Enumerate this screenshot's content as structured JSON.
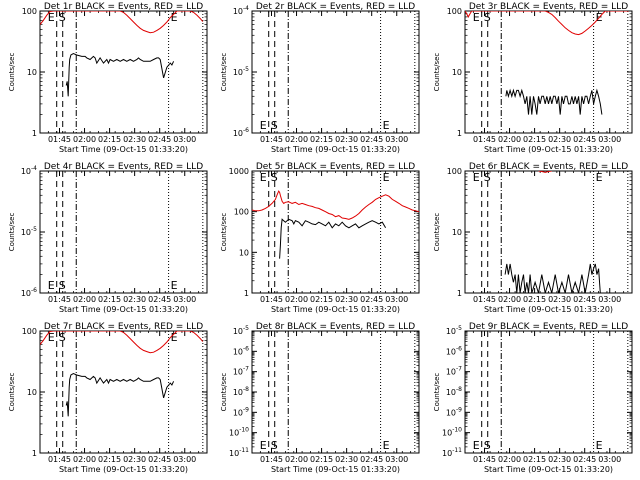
{
  "figure": {
    "start_time_label": "Start Time (09-Oct-15 01:33:20)",
    "colors": {
      "events": "#000000",
      "lld": "#e00000",
      "axes": "#000000"
    },
    "x_axis": {
      "unit": "minutes after 01:33:20",
      "range": [
        0,
        100
      ],
      "ticks": [
        {
          "value": 11.67,
          "label": "01:45"
        },
        {
          "value": 26.67,
          "label": "02:00"
        },
        {
          "value": 41.67,
          "label": "02:15"
        },
        {
          "value": 56.67,
          "label": "02:30"
        },
        {
          "value": 71.67,
          "label": "02:45"
        },
        {
          "value": 86.67,
          "label": "03:00"
        }
      ],
      "minor_step": 5
    },
    "markers": [
      {
        "kind": "dashed",
        "x": 10,
        "label": "E"
      },
      {
        "kind": "dashed",
        "x": 13.6,
        "label": "S"
      },
      {
        "kind": "dashdot",
        "x": 21.7,
        "label": ""
      },
      {
        "kind": "dotted",
        "x": 77,
        "label": "E"
      },
      {
        "kind": "dotted",
        "x": 97.5,
        "label": ""
      }
    ]
  },
  "chart_data": [
    {
      "type": "line",
      "title": "Det 1r BLACK = Events, RED = LLD",
      "ylabel": "Counts/sec",
      "yscale": "log",
      "ylim": [
        1,
        100
      ],
      "yticks": [
        1,
        10,
        100
      ],
      "series": [
        {
          "name": "Events",
          "color": "#000000",
          "x": [
            15.7,
            16.3,
            16.9,
            17.5,
            17.8,
            18.5,
            20,
            22,
            25,
            27,
            28,
            30,
            32,
            33,
            34,
            36,
            38,
            40,
            41,
            42,
            44,
            46,
            48,
            50,
            52,
            54,
            56,
            58,
            59,
            60,
            62,
            64,
            66,
            68,
            70,
            71,
            72,
            74,
            76,
            78,
            79,
            80
          ],
          "y": [
            6,
            7,
            4,
            12,
            16,
            19,
            20,
            19,
            18,
            18,
            17,
            16,
            18,
            17,
            14,
            17,
            14,
            16,
            14,
            16,
            15,
            16,
            15,
            16,
            15,
            16,
            15,
            16,
            17,
            16,
            15,
            15,
            15,
            16,
            17,
            17,
            16,
            8,
            12,
            14,
            13,
            15
          ]
        },
        {
          "name": "LLD",
          "color": "#e00000",
          "x": [
            0,
            2,
            4,
            6,
            8,
            10,
            10.5,
            11,
            12,
            14,
            16,
            18,
            20,
            22,
            24,
            26,
            28,
            30,
            32,
            34,
            36,
            38,
            40,
            42,
            44,
            46,
            48,
            50,
            52,
            54,
            56,
            58,
            60,
            62,
            64,
            66,
            68,
            70,
            72,
            74,
            76,
            78,
            80,
            82,
            84,
            86,
            88,
            90,
            92,
            94,
            96,
            97.5
          ],
          "y": [
            60,
            70,
            85,
            98,
            100,
            100,
            100,
            100,
            100,
            100,
            100,
            100,
            100,
            100,
            100,
            100,
            100,
            100,
            100,
            100,
            100,
            100,
            100,
            100,
            100,
            100,
            100,
            95,
            85,
            75,
            66,
            58,
            52,
            48,
            46,
            44,
            45,
            48,
            52,
            58,
            66,
            78,
            88,
            100,
            100,
            100,
            100,
            100,
            95,
            85,
            75,
            67
          ]
        }
      ]
    },
    {
      "type": "line",
      "title": "Det 2r BLACK = Events, RED = LLD",
      "ylabel": "Counts/sec",
      "yscale": "log",
      "ylim": [
        1e-06,
        0.0001
      ],
      "yticks": [
        1e-06,
        1e-05,
        0.0001
      ],
      "yticklabels": [
        "10^-6",
        "10^-5",
        "10^-4"
      ],
      "series": []
    },
    {
      "type": "line",
      "title": "Det 3r BLACK = Events, RED = LLD",
      "ylabel": "Counts/sec",
      "yscale": "log",
      "ylim": [
        1,
        100
      ],
      "yticks": [
        1,
        10,
        100
      ],
      "series": [
        {
          "name": "Events",
          "color": "#000000",
          "x": [
            24.5,
            25,
            26,
            27,
            28,
            29,
            30,
            31,
            32,
            33,
            34,
            35,
            36,
            37,
            38,
            39,
            40,
            41,
            42,
            43,
            44,
            45,
            46,
            47,
            48,
            49,
            50,
            51,
            52,
            53,
            54,
            55,
            56,
            57,
            58,
            59,
            60,
            61,
            62,
            63,
            64,
            65,
            66,
            67,
            68,
            69,
            70,
            71,
            72,
            73,
            74,
            75,
            76,
            77,
            78,
            79,
            80,
            81,
            82
          ],
          "y": [
            4,
            5,
            4,
            5,
            4,
            5,
            4,
            5,
            5,
            4,
            5,
            4,
            3,
            4,
            2,
            4,
            2,
            4,
            3,
            2,
            4,
            3,
            4,
            4,
            3,
            4,
            3,
            4,
            3,
            4,
            4,
            3,
            4,
            2,
            4,
            3,
            4,
            4,
            3,
            3,
            4,
            3,
            4,
            3,
            4,
            2,
            4,
            3,
            4,
            4,
            3,
            4,
            5,
            3,
            4,
            5,
            4,
            3,
            2
          ]
        },
        {
          "name": "LLD",
          "color": "#e00000",
          "x": [
            0,
            1,
            2,
            3,
            4,
            5,
            6,
            8,
            10,
            12,
            14,
            16,
            18,
            20,
            22,
            24,
            26,
            28,
            30,
            32,
            34,
            36,
            38,
            40,
            42,
            44,
            46,
            48,
            50,
            52,
            54,
            56,
            58,
            60,
            62,
            64,
            66,
            68,
            70,
            72,
            74,
            76,
            78,
            80,
            82,
            84,
            86,
            88,
            90,
            92,
            94,
            96,
            98
          ],
          "y": [
            100,
            90,
            80,
            90,
            100,
            100,
            100,
            100,
            100,
            100,
            100,
            100,
            100,
            100,
            100,
            100,
            100,
            100,
            100,
            100,
            100,
            100,
            100,
            100,
            100,
            100,
            100,
            100,
            95,
            88,
            78,
            68,
            60,
            53,
            48,
            44,
            42,
            41,
            43,
            47,
            52,
            58,
            66,
            76,
            88,
            100,
            100,
            100,
            100,
            100,
            100,
            100,
            100
          ]
        }
      ]
    },
    {
      "type": "line",
      "title": "Det 4r BLACK = Events, RED = LLD",
      "ylabel": "Counts/sec",
      "yscale": "log",
      "ylim": [
        1e-06,
        0.0001
      ],
      "yticks": [
        1e-06,
        1e-05,
        0.0001
      ],
      "yticklabels": [
        "10^-6",
        "10^-5",
        "10^-4"
      ],
      "series": []
    },
    {
      "type": "line",
      "title": "Det 5r BLACK = Events, RED = LLD",
      "ylabel": "Counts/sec",
      "yscale": "log",
      "ylim": [
        1,
        1000
      ],
      "yticks": [
        1,
        10,
        100,
        1000
      ],
      "series": [
        {
          "name": "Events",
          "color": "#000000",
          "x": [
            16.5,
            17,
            17.5,
            18,
            19,
            20,
            22,
            24,
            25,
            26,
            28,
            30,
            32,
            34,
            36,
            38,
            40,
            42,
            44,
            46,
            48,
            50,
            52,
            54,
            56,
            58,
            60,
            62,
            64,
            66,
            68,
            70,
            72,
            74,
            76,
            78,
            80
          ],
          "y": [
            7,
            15,
            40,
            65,
            60,
            55,
            65,
            60,
            50,
            60,
            55,
            45,
            60,
            55,
            50,
            48,
            55,
            50,
            45,
            55,
            40,
            50,
            45,
            55,
            45,
            40,
            45,
            50,
            40,
            45,
            50,
            55,
            60,
            55,
            50,
            55,
            40
          ]
        },
        {
          "name": "LLD",
          "color": "#e00000",
          "x": [
            0,
            2,
            4,
            6,
            8,
            10,
            12,
            14,
            15,
            16,
            16.5,
            17,
            18,
            19,
            20,
            22,
            24,
            26,
            28,
            30,
            32,
            34,
            36,
            38,
            40,
            42,
            44,
            46,
            48,
            50,
            52,
            54,
            56,
            58,
            60,
            62,
            64,
            66,
            68,
            70,
            72,
            74,
            76,
            78,
            80,
            82,
            84,
            86,
            88,
            90,
            92,
            94,
            96,
            98,
            100
          ],
          "y": [
            110,
            105,
            105,
            110,
            120,
            135,
            160,
            200,
            260,
            320,
            300,
            250,
            180,
            160,
            170,
            175,
            160,
            170,
            150,
            160,
            150,
            140,
            135,
            125,
            120,
            110,
            100,
            90,
            85,
            75,
            80,
            70,
            68,
            65,
            70,
            78,
            90,
            110,
            130,
            150,
            170,
            200,
            220,
            240,
            260,
            240,
            200,
            180,
            160,
            140,
            130,
            120,
            110,
            105,
            100
          ]
        }
      ]
    },
    {
      "type": "line",
      "title": "Det 6r BLACK = Events, RED = LLD",
      "ylabel": "Counts/sec",
      "yscale": "log",
      "ylim": [
        1,
        100
      ],
      "yticks": [
        1,
        10,
        100
      ],
      "series": [
        {
          "name": "Events",
          "color": "#000000",
          "x": [
            24,
            25,
            26,
            27,
            28,
            29,
            30,
            31,
            32,
            33,
            34,
            35,
            36,
            37,
            38,
            39,
            40,
            42,
            44,
            46,
            48,
            50,
            52,
            54,
            56,
            58,
            60,
            62,
            64,
            66,
            68,
            70,
            72,
            74,
            75,
            76,
            77,
            78,
            79,
            80,
            81,
            82
          ],
          "y": [
            2,
            3,
            2,
            3,
            2,
            1.5,
            2,
            1,
            2,
            1,
            1.5,
            2,
            1,
            1.5,
            1,
            2,
            1,
            1.5,
            1,
            2,
            1,
            1.5,
            1,
            2,
            1,
            1.5,
            1,
            2,
            1,
            1.5,
            1,
            2,
            1,
            2,
            3,
            2,
            2.5,
            3,
            2,
            2.5,
            1,
            1
          ]
        },
        {
          "name": "LLD",
          "color": "#e00000",
          "x": [
            44,
            46,
            48,
            50,
            52
          ],
          "y": [
            100,
            98,
            95,
            98,
            100
          ]
        }
      ]
    },
    {
      "type": "line",
      "title": "Det 7r BLACK = Events, RED = LLD",
      "ylabel": "Counts/sec",
      "yscale": "log",
      "ylim": [
        1,
        100
      ],
      "yticks": [
        1,
        10,
        100
      ],
      "series": [
        {
          "name": "Events",
          "color": "#000000",
          "x": [
            15.7,
            16.3,
            16.9,
            17.5,
            17.8,
            18.5,
            20,
            22,
            25,
            27,
            28,
            30,
            32,
            33,
            34,
            36,
            38,
            40,
            41,
            42,
            44,
            46,
            48,
            50,
            52,
            54,
            56,
            58,
            59,
            60,
            62,
            64,
            66,
            68,
            70,
            71,
            72,
            74,
            76,
            78,
            79,
            80
          ],
          "y": [
            6,
            7,
            4,
            12,
            16,
            19,
            20,
            19,
            18,
            18,
            17,
            16,
            18,
            17,
            14,
            17,
            14,
            16,
            14,
            16,
            15,
            16,
            15,
            16,
            15,
            16,
            15,
            16,
            17,
            16,
            15,
            15,
            15,
            16,
            17,
            17,
            16,
            8,
            12,
            14,
            13,
            15
          ]
        },
        {
          "name": "LLD",
          "color": "#e00000",
          "x": [
            0,
            2,
            4,
            6,
            8,
            10,
            10.5,
            11,
            12,
            14,
            16,
            18,
            20,
            22,
            24,
            26,
            28,
            30,
            32,
            34,
            36,
            38,
            40,
            42,
            44,
            46,
            48,
            50,
            52,
            54,
            56,
            58,
            60,
            62,
            64,
            66,
            68,
            70,
            72,
            74,
            76,
            78,
            80,
            82,
            84,
            86,
            88,
            90,
            92,
            94,
            96,
            97.5
          ],
          "y": [
            60,
            70,
            85,
            98,
            100,
            100,
            100,
            100,
            100,
            100,
            100,
            100,
            100,
            100,
            100,
            100,
            100,
            100,
            100,
            100,
            100,
            100,
            100,
            100,
            100,
            100,
            100,
            95,
            85,
            75,
            66,
            58,
            52,
            48,
            46,
            44,
            45,
            48,
            52,
            58,
            66,
            78,
            88,
            100,
            100,
            100,
            100,
            100,
            95,
            85,
            75,
            67
          ]
        }
      ]
    },
    {
      "type": "line",
      "title": "Det 8r BLACK = Events, RED = LLD",
      "ylabel": "Counts/sec",
      "yscale": "log",
      "ylim": [
        1e-11,
        1e-05
      ],
      "yticks": [
        1e-11,
        1e-10,
        1e-09,
        1e-08,
        1e-07,
        1e-06,
        1e-05
      ],
      "yticklabels": [
        "10^-11",
        "10^-10",
        "10^-9",
        "10^-8",
        "10^-7",
        "10^-6",
        "10^-5"
      ],
      "series": []
    },
    {
      "type": "line",
      "title": "Det 9r BLACK = Events, RED = LLD",
      "ylabel": "Counts/sec",
      "yscale": "log",
      "ylim": [
        1e-11,
        1e-05
      ],
      "yticks": [
        1e-11,
        1e-10,
        1e-09,
        1e-08,
        1e-07,
        1e-06,
        1e-05
      ],
      "yticklabels": [
        "10^-11",
        "10^-10",
        "10^-9",
        "10^-8",
        "10^-7",
        "10^-6",
        "10^-5"
      ],
      "series": []
    }
  ]
}
